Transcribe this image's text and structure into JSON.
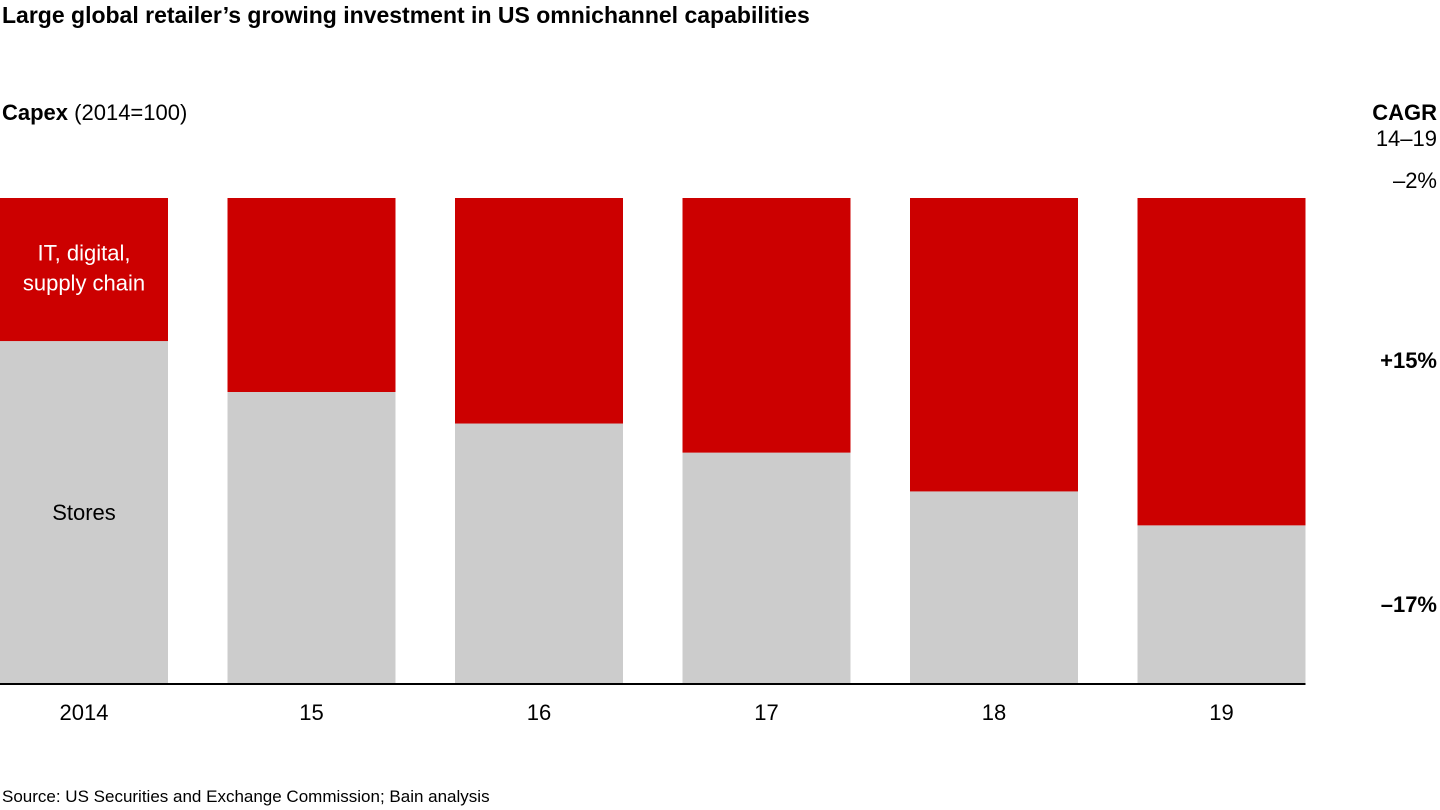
{
  "title": "Large global retailer’s growing investment in US omnichannel capabilities",
  "ylabel": {
    "bold": "Capex",
    "rest": " (2014=100)"
  },
  "cagr": {
    "heading": "CAGR",
    "period": "14–19",
    "total": "–2%",
    "it": "+15%",
    "stores": "–17%"
  },
  "source": "Source: US Securities and Exchange Commission; Bain analysis",
  "colors": {
    "it": "#cc0000",
    "stores": "#cccccc",
    "axis": "#000000"
  },
  "chart_data": {
    "type": "bar",
    "stacked": true,
    "normalized_to_100": true,
    "categories": [
      "2014",
      "15",
      "16",
      "17",
      "18",
      "19"
    ],
    "series": [
      {
        "name": "Stores",
        "values": [
          70.5,
          60,
          53.5,
          47.5,
          39.5,
          32.5
        ]
      },
      {
        "name": "IT, digital, supply chain",
        "values": [
          29.5,
          40,
          46.5,
          52.5,
          60.5,
          67.5
        ]
      }
    ],
    "series_labels": {
      "it": [
        "IT, digital,",
        "supply chain"
      ],
      "stores": "Stores"
    },
    "ylim": [
      0,
      100
    ],
    "grid": false,
    "legend": "inside-first-bar"
  }
}
